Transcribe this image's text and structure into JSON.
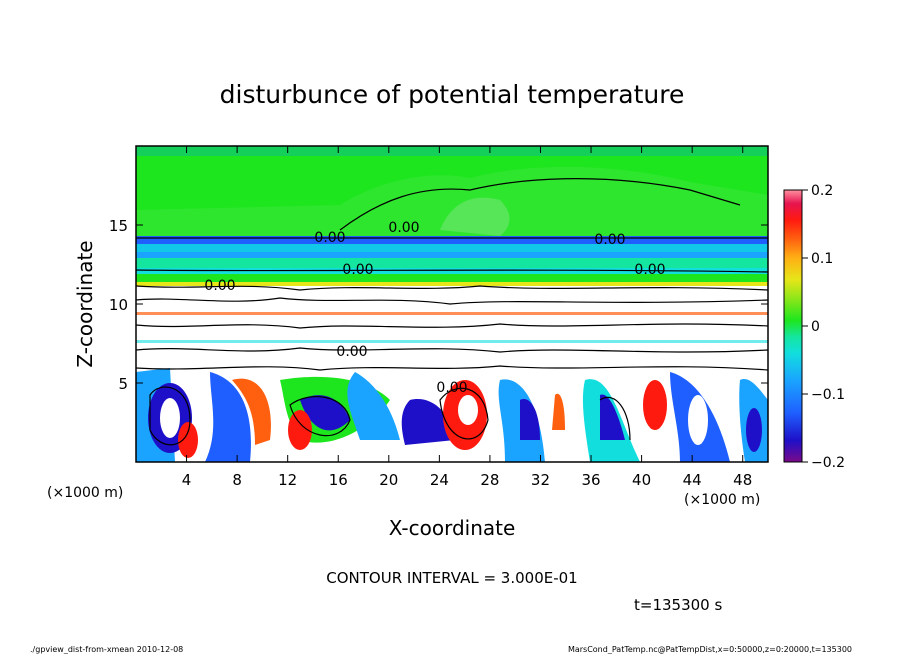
{
  "chart_data": {
    "type": "heatmap",
    "title": "disturbunce of potential temperature",
    "xlabel": "X-coordinate",
    "ylabel": "Z-coordinate",
    "x_unit": "(×1000 m)",
    "z_unit": "(×1000 m)",
    "xlim": [
      0,
      50
    ],
    "zlim": [
      0,
      20
    ],
    "x_ticks": [
      4,
      8,
      12,
      16,
      20,
      24,
      28,
      32,
      36,
      40,
      44,
      48
    ],
    "z_ticks": [
      5,
      10,
      15
    ],
    "colorbar": {
      "range": [
        -0.2,
        0.2
      ],
      "ticks": [
        "0.2",
        "0.1",
        "0",
        "−0.1",
        "−0.2"
      ],
      "tick_values": [
        0.2,
        0.1,
        0,
        -0.1,
        -0.2
      ],
      "colors": [
        "#7a0a8a",
        "#1e10c8",
        "#1f5fff",
        "#1aa4ff",
        "#12dede",
        "#14e6a0",
        "#1ee61e",
        "#8ce619",
        "#e6e619",
        "#ffb014",
        "#ff6010",
        "#ff1a10",
        "#e61450",
        "#ff90a0"
      ]
    },
    "contour_labels": [
      "0.00",
      "0.00",
      "0.00",
      "0.00",
      "0.00",
      "0.00",
      "0.00",
      "0.00"
    ],
    "contour_interval": "CONTOUR INTERVAL = 3.000E-01",
    "time": "t=135300 s"
  },
  "footer": {
    "left": "./gpview_dist-from-xmean  2010-12-08",
    "right": "MarsCond_PatTemp.nc@PatTempDist,x=0:50000,z=0:20000,t=135300"
  }
}
